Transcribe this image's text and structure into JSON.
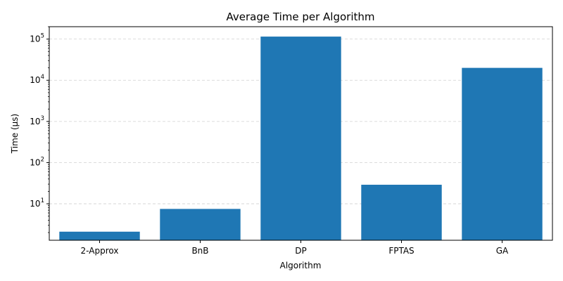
{
  "chart_data": {
    "type": "bar",
    "title": "Average Time per Algorithm",
    "xlabel": "Algorithm",
    "ylabel": "Time (µs)",
    "categories": [
      "2-Approx",
      "BnB",
      "DP",
      "FPTAS",
      "GA"
    ],
    "values": [
      2.1,
      7.5,
      115000,
      29,
      20000
    ],
    "y_scale": "log",
    "ylim": [
      1.3,
      200000
    ],
    "y_major_ticks": [
      {
        "value": 10,
        "base": "10",
        "exp": "1"
      },
      {
        "value": 100,
        "base": "10",
        "exp": "2"
      },
      {
        "value": 1000,
        "base": "10",
        "exp": "3"
      },
      {
        "value": 10000,
        "base": "10",
        "exp": "4"
      },
      {
        "value": 100000,
        "base": "10",
        "exp": "5"
      }
    ],
    "grid": {
      "y": true,
      "x": false,
      "style": "dashed"
    },
    "bar_color": "#1f77b4"
  }
}
